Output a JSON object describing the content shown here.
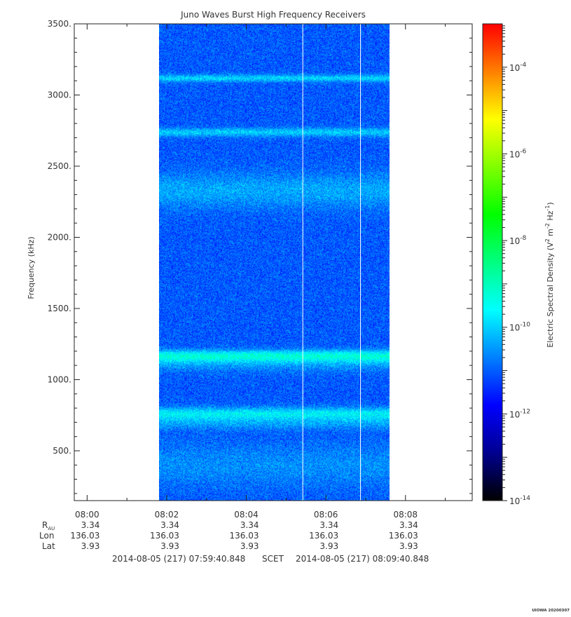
{
  "chart_data": {
    "type": "heatmap",
    "title": "Juno Waves Burst High Frequency Receivers",
    "ylabel": "Frequency (kHz)",
    "colorbar_label_prefix": "Electric Spectral Density (V",
    "colorbar_label_m": " m",
    "colorbar_label_hz": " Hz",
    "colorbar_label_close": ")",
    "colorbar_sup_2": "2",
    "colorbar_sup_m": "-2",
    "colorbar_sup_hz": "-1",
    "ylim": [
      150,
      3500
    ],
    "yticks": [
      {
        "value": 500,
        "label": "500."
      },
      {
        "value": 1000,
        "label": "1000."
      },
      {
        "value": 1500,
        "label": "1500."
      },
      {
        "value": 2000,
        "label": "2000."
      },
      {
        "value": 2500,
        "label": "2500."
      },
      {
        "value": 3000,
        "label": "3000."
      },
      {
        "value": 3500,
        "label": "3500."
      }
    ],
    "xlim_minutes": [
      -0.323,
      9.677
    ],
    "xticks": [
      {
        "minute": 0,
        "label": "08:00",
        "rau": "3.34",
        "lon": "136.03",
        "lat": "3.93"
      },
      {
        "minute": 2,
        "label": "08:02",
        "rau": "3.34",
        "lon": "136.03",
        "lat": "3.93"
      },
      {
        "minute": 4,
        "label": "08:04",
        "rau": "3.34",
        "lon": "136.03",
        "lat": "3.93"
      },
      {
        "minute": 6,
        "label": "08:06",
        "rau": "3.34",
        "lon": "136.03",
        "lat": "3.93"
      },
      {
        "minute": 8,
        "label": "08:08",
        "rau": "3.34",
        "lon": "136.03",
        "lat": "3.93"
      }
    ],
    "row_labels": {
      "rau_main": "R",
      "rau_sub": "AU",
      "lon": "Lon",
      "lat": "Lat"
    },
    "time_range": {
      "start": "2014-08-05 (217) 07:59:40.848",
      "mid": "SCET",
      "end": "2014-08-05 (217) 08:09:40.848"
    },
    "data_span_minutes": [
      1.8,
      7.6
    ],
    "gap_lines_minutes": [
      5.42,
      6.87
    ],
    "bands_khz": [
      {
        "freq": 3120,
        "width": 25,
        "intensity": 0.7
      },
      {
        "freq": 2740,
        "width": 30,
        "intensity": 0.65
      },
      {
        "freq": 2330,
        "width": 120,
        "intensity": 0.45
      },
      {
        "freq": 1170,
        "width": 40,
        "intensity": 0.95
      },
      {
        "freq": 1120,
        "width": 60,
        "intensity": 0.4
      },
      {
        "freq": 760,
        "width": 45,
        "intensity": 0.9
      },
      {
        "freq": 690,
        "width": 40,
        "intensity": 0.35
      },
      {
        "freq": 400,
        "width": 150,
        "intensity": 0.3
      }
    ],
    "colorbar": {
      "scale": "log",
      "min_exp": -14,
      "max_exp": -3,
      "ticks": [
        {
          "exp": -14,
          "label_base": "10",
          "label_exp": "-14"
        },
        {
          "exp": -12,
          "label_base": "10",
          "label_exp": "-12"
        },
        {
          "exp": -10,
          "label_base": "10",
          "label_exp": "-10"
        },
        {
          "exp": -8,
          "label_base": "10",
          "label_exp": "-8"
        },
        {
          "exp": -6,
          "label_base": "10",
          "label_exp": "-6"
        },
        {
          "exp": -4,
          "label_base": "10",
          "label_exp": "-4"
        }
      ],
      "colormap": [
        "#000000",
        "#00008f",
        "#0000ff",
        "#0080ff",
        "#00ffff",
        "#00ff80",
        "#00ff00",
        "#80ff00",
        "#ffff00",
        "#ff8000",
        "#ff0000"
      ]
    },
    "grid": false
  },
  "footer": {
    "stamp": "UIOWA 20200307"
  }
}
